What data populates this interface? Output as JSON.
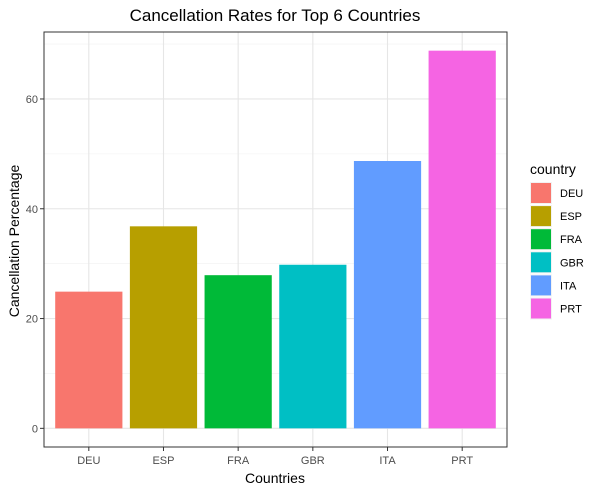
{
  "chart_data": {
    "type": "bar",
    "title": "Cancellation Rates for Top 6 Countries",
    "xlabel": "Countries",
    "ylabel": "Cancellation Percentage",
    "categories": [
      "DEU",
      "ESP",
      "FRA",
      "GBR",
      "ITA",
      "PRT"
    ],
    "values": [
      24.9,
      36.8,
      27.9,
      29.8,
      48.7,
      68.8
    ],
    "ylim": [
      -3.4,
      72.2
    ],
    "yticks": [
      0,
      20,
      40,
      60
    ],
    "grid": true,
    "legend": {
      "title": "country",
      "placement": "right",
      "items": [
        "DEU",
        "ESP",
        "FRA",
        "GBR",
        "ITA",
        "PRT"
      ]
    },
    "colors": [
      "#F8766D",
      "#B79F00",
      "#00BA38",
      "#00BFC4",
      "#619CFF",
      "#F564E3"
    ]
  }
}
